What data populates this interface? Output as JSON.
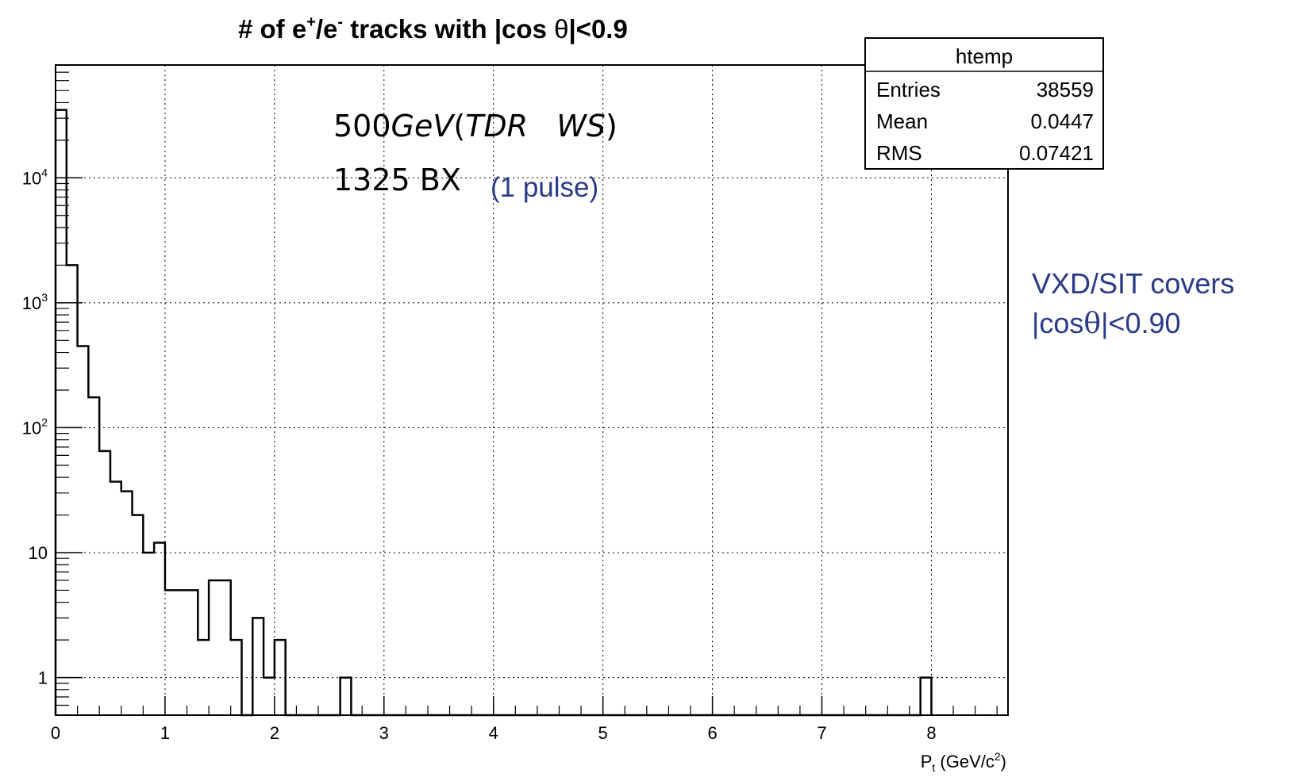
{
  "chart_data": {
    "type": "bar",
    "histogram": true,
    "title_parts": [
      "# of e",
      "+",
      "/e",
      "-",
      " tracks with |cos ",
      "θ",
      "|<0.9"
    ],
    "xlabel_main": "P",
    "xlabel_sub": "t",
    "xlabel_rest": " (GeV/c",
    "xlabel_exp": "2",
    "xlabel_close": ")",
    "ylabel": "",
    "log_y": true,
    "grid": true,
    "xlim": [
      0,
      8.7
    ],
    "ylim": [
      0.5,
      80000
    ],
    "x_ticks": [
      "0",
      "1",
      "2",
      "3",
      "4",
      "5",
      "6",
      "7",
      "8"
    ],
    "y_ticks": [
      {
        "value": 1,
        "label": "1",
        "exp": ""
      },
      {
        "value": 10,
        "label": "10",
        "exp": ""
      },
      {
        "value": 100,
        "label": "10",
        "exp": "2"
      },
      {
        "value": 1000,
        "label": "10",
        "exp": "3"
      },
      {
        "value": 10000,
        "label": "10",
        "exp": "4"
      }
    ],
    "bin_width": 0.1,
    "bin_edges_start": 0,
    "bin_contents": [
      35000,
      2000,
      450,
      175,
      65,
      37,
      31,
      20,
      10,
      12,
      5,
      5,
      5,
      2,
      6,
      6,
      2,
      0,
      3,
      1,
      2,
      0,
      0,
      0,
      0,
      0,
      1,
      0,
      0,
      0,
      0,
      0,
      0,
      0,
      0,
      0,
      0,
      0,
      0,
      0,
      0,
      0,
      0,
      0,
      0,
      0,
      0,
      0,
      0,
      0,
      0,
      0,
      0,
      0,
      0,
      0,
      0,
      0,
      0,
      0,
      0,
      0,
      0,
      0,
      0,
      0,
      0,
      0,
      0,
      0,
      0,
      0,
      0,
      0,
      0,
      0,
      0,
      0,
      0,
      1
    ],
    "stats_box": {
      "name": "htemp",
      "rows": [
        {
          "label": "Entries",
          "value": "38559"
        },
        {
          "label": "Mean",
          "value": "0.0447"
        },
        {
          "label": "RMS",
          "value": "0.07421"
        }
      ]
    },
    "annotations": {
      "energy_prefix": "500",
      "energy_unit": "GeV",
      "config_open": "(",
      "config_italic": "TDR   WS",
      "config_close": ")",
      "bx": "1325 BX",
      "pulse": "(1 pulse)"
    },
    "colors": {
      "line": "#000000",
      "grid": "#000000",
      "annotation_blue": "#2a3a86"
    }
  },
  "side_note": {
    "line1": "VXD/SIT covers",
    "line2_prefix": "|cos",
    "line2_theta": "θ",
    "line2_suffix": "|<0.90"
  }
}
